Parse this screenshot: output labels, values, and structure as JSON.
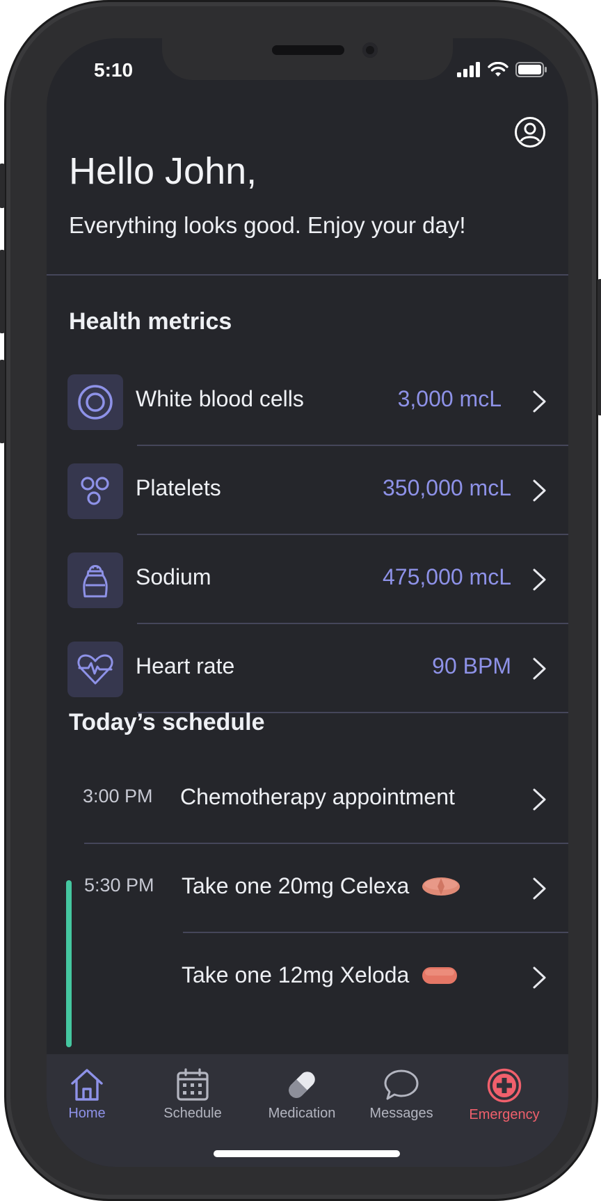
{
  "status_bar": {
    "time": "5:10"
  },
  "header": {
    "greeting": "Hello John,",
    "subtitle": "Everything looks good. Enjoy your day!"
  },
  "health_metrics": {
    "title": "Health metrics",
    "items": [
      {
        "label": "White blood cells",
        "value": "3,000 mcL",
        "icon": "target-icon"
      },
      {
        "label": "Platelets",
        "value": "350,000 mcL",
        "icon": "cells-icon"
      },
      {
        "label": "Sodium",
        "value": "475,000 mcL",
        "icon": "salt-shaker-icon"
      },
      {
        "label": "Heart rate",
        "value": "90 BPM",
        "icon": "heart-pulse-icon"
      }
    ]
  },
  "schedule": {
    "title": "Today’s schedule",
    "items": [
      {
        "time": "3:00 PM",
        "text": "Chemotherapy appointment"
      },
      {
        "time": "5:30 PM",
        "text": "Take one 20mg Celexa"
      },
      {
        "time": "",
        "text": "Take one 12mg Xeloda"
      }
    ]
  },
  "tabbar": {
    "items": [
      {
        "label": "Home",
        "icon": "home-icon",
        "active": true
      },
      {
        "label": "Schedule",
        "icon": "calendar-icon"
      },
      {
        "label": "Medication",
        "icon": "pill-icon"
      },
      {
        "label": "Messages",
        "icon": "chat-bubble-icon"
      },
      {
        "label": "Emergency",
        "icon": "emergency-plus-icon"
      }
    ]
  },
  "colors": {
    "accent": "#8e92e8",
    "emergency": "#f0606c",
    "active_marker": "#45c7a0",
    "background": "#25262b"
  }
}
